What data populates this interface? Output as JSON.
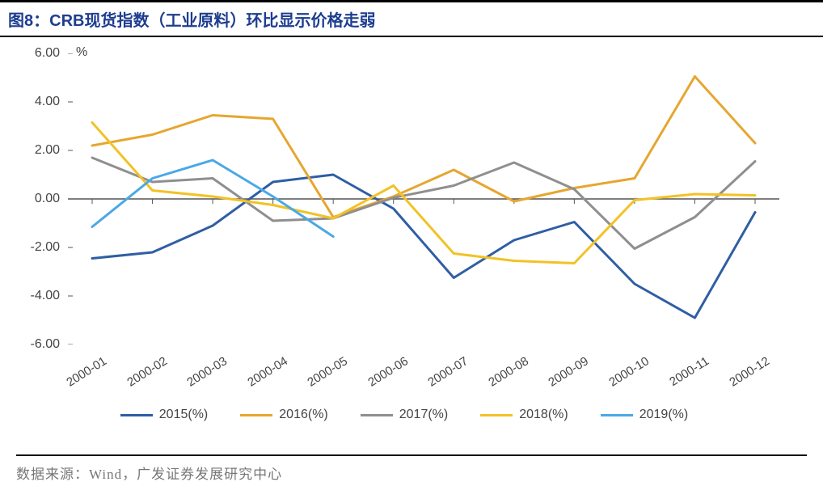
{
  "title": "图8：CRB现货指数（工业原料）环比显示价格走弱",
  "source": "数据来源：Wind，广发证券发展研究中心",
  "chart": {
    "type": "line",
    "unit_label": "%",
    "background_color": "#ffffff",
    "axis_color": "#555555",
    "font_size_axis": 16,
    "title_color": "#1d3d8f",
    "title_font_size": 20,
    "categories": [
      "2000-01",
      "2000-02",
      "2000-03",
      "2000-04",
      "2000-05",
      "2000-06",
      "2000-07",
      "2000-08",
      "2000-09",
      "2000-10",
      "2000-11",
      "2000-12"
    ],
    "ylim": [
      -6.0,
      6.0
    ],
    "ytick_step": 2.0,
    "yticks": [
      6.0,
      4.0,
      2.0,
      0.0,
      -2.0,
      -4.0,
      -6.0
    ],
    "line_width": 3,
    "series": [
      {
        "name": "2015(%)",
        "color": "#2f5ea3",
        "values": [
          -2.45,
          -2.2,
          -1.1,
          0.7,
          1.0,
          -0.4,
          -3.25,
          -1.7,
          -0.95,
          -3.5,
          -4.9,
          -0.55
        ]
      },
      {
        "name": "2016(%)",
        "color": "#e6a62f",
        "values": [
          2.2,
          2.65,
          3.45,
          3.3,
          -0.75,
          0.1,
          1.2,
          -0.1,
          0.45,
          0.85,
          5.05,
          2.3
        ]
      },
      {
        "name": "2017(%)",
        "color": "#8f8f8f",
        "values": [
          1.7,
          0.7,
          0.85,
          -0.9,
          -0.8,
          0.05,
          0.55,
          1.5,
          0.4,
          -2.05,
          -0.75,
          1.55
        ]
      },
      {
        "name": "2018(%)",
        "color": "#f2c226",
        "values": [
          3.15,
          0.35,
          0.1,
          -0.25,
          -0.8,
          0.55,
          -2.25,
          -2.55,
          -2.65,
          -0.05,
          0.2,
          0.15
        ]
      },
      {
        "name": "2019(%)",
        "color": "#4aa8e6",
        "values": [
          -1.15,
          0.85,
          1.6,
          0.1,
          -1.55
        ]
      }
    ]
  }
}
